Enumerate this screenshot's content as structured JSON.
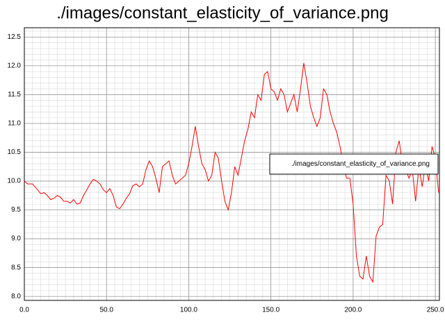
{
  "chart_data": {
    "type": "line",
    "title": "./images/constant_elasticity_of_variance.png",
    "x": [
      0,
      2,
      5,
      8,
      10,
      12,
      14,
      16,
      18,
      20,
      22,
      24,
      26,
      28,
      30,
      32,
      34,
      36,
      38,
      40,
      42,
      44,
      46,
      48,
      50,
      52,
      54,
      56,
      58,
      60,
      62,
      64,
      66,
      68,
      70,
      72,
      74,
      76,
      78,
      80,
      82,
      84,
      86,
      88,
      90,
      92,
      94,
      96,
      98,
      100,
      102,
      104,
      106,
      108,
      110,
      112,
      114,
      116,
      118,
      120,
      122,
      124,
      126,
      128,
      130,
      132,
      134,
      136,
      138,
      140,
      142,
      144,
      146,
      148,
      150,
      152,
      154,
      156,
      158,
      160,
      162,
      164,
      166,
      168,
      170,
      172,
      174,
      176,
      178,
      180,
      182,
      184,
      186,
      188,
      190,
      192,
      194,
      196,
      198,
      200,
      202,
      204,
      206,
      208,
      210,
      212,
      214,
      216,
      218,
      220,
      222,
      224,
      226,
      228,
      230,
      232,
      234,
      236,
      238,
      240,
      242,
      244,
      246,
      248,
      250,
      252
    ],
    "series": [
      {
        "name": "./images/constant_elasticity_of_variance.png",
        "color": "#ff0000",
        "values": [
          10.0,
          9.95,
          9.95,
          9.85,
          9.78,
          9.8,
          9.75,
          9.68,
          9.7,
          9.75,
          9.72,
          9.65,
          9.65,
          9.62,
          9.68,
          9.6,
          9.62,
          9.75,
          9.85,
          9.95,
          10.03,
          10.0,
          9.95,
          9.85,
          9.8,
          9.87,
          9.75,
          9.55,
          9.52,
          9.6,
          9.7,
          9.78,
          9.92,
          9.95,
          9.9,
          9.95,
          10.2,
          10.35,
          10.25,
          10.05,
          9.8,
          10.25,
          10.3,
          10.35,
          10.1,
          9.95,
          10.0,
          10.05,
          10.1,
          10.3,
          10.6,
          10.95,
          10.6,
          10.3,
          10.2,
          10.0,
          10.1,
          10.5,
          10.4,
          10.0,
          9.65,
          9.5,
          9.8,
          10.25,
          10.1,
          10.4,
          10.7,
          10.9,
          11.2,
          11.1,
          11.5,
          11.4,
          11.85,
          11.9,
          11.6,
          11.55,
          11.4,
          11.6,
          11.5,
          11.2,
          11.35,
          11.5,
          11.2,
          11.6,
          12.05,
          11.7,
          11.3,
          11.1,
          10.95,
          11.1,
          11.6,
          11.5,
          11.2,
          11.0,
          10.85,
          10.6,
          10.3,
          10.05,
          10.05,
          9.6,
          8.7,
          8.35,
          8.3,
          8.7,
          8.35,
          8.25,
          9.05,
          9.2,
          9.25,
          10.1,
          10.0,
          9.6,
          10.5,
          10.7,
          10.3,
          10.2,
          10.05,
          10.2,
          9.65,
          10.25,
          9.9,
          10.3,
          10.0,
          10.6,
          10.4,
          9.8
        ]
      }
    ],
    "xlim": [
      0,
      252.5
    ],
    "ylim": [
      7.93,
      12.66
    ],
    "xticks": [
      {
        "value": 0,
        "label": "0.0"
      },
      {
        "value": 50,
        "label": "50.0"
      },
      {
        "value": 100,
        "label": "100.0"
      },
      {
        "value": 150,
        "label": "150.0"
      },
      {
        "value": 200,
        "label": "200.0"
      },
      {
        "value": 250,
        "label": "250.0"
      }
    ],
    "yticks": [
      {
        "value": 8,
        "label": "8.0"
      },
      8.5,
      {
        "value": 9,
        "label": "9.0"
      },
      9.5,
      {
        "value": 10,
        "label": "10.0"
      },
      10.5,
      {
        "value": 11,
        "label": "11.0"
      },
      11.5,
      {
        "value": 12,
        "label": "12.0"
      },
      12.5
    ],
    "grid": true,
    "minor_grid": {
      "x": 5,
      "y": 0.1
    },
    "legend": "center right"
  }
}
